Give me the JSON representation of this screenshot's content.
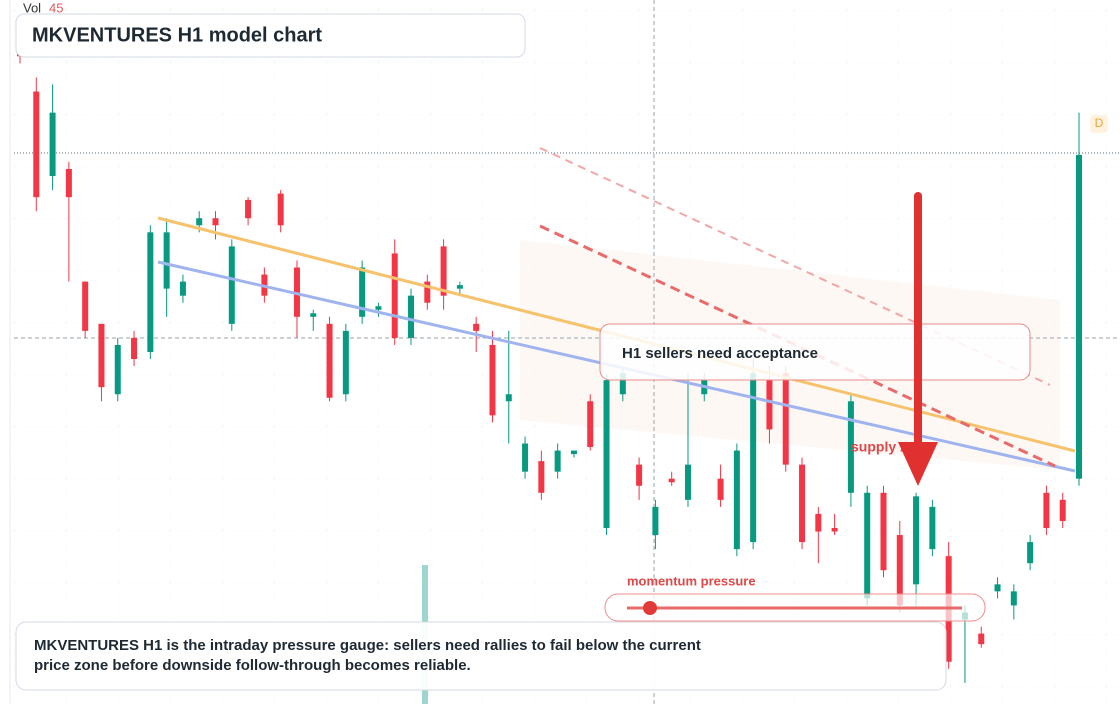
{
  "header": {
    "vol_label": "Vol",
    "vol_value": 45,
    "title": "MKVENTURES H1 model chart",
    "badge": "D"
  },
  "chart_data": {
    "type": "candlestick",
    "ylim": [
      0,
      100
    ],
    "up_color": "#089981",
    "down_color": "#f23645",
    "open": [
      93,
      87,
      75,
      76,
      60,
      54,
      44,
      52,
      50,
      59,
      58,
      68,
      69,
      54,
      71.6,
      61,
      72.5,
      62,
      55,
      54,
      44,
      55,
      56,
      64,
      52,
      60,
      65,
      59,
      54,
      51,
      43,
      33,
      34.5,
      33,
      35.5,
      43,
      25,
      44,
      34,
      24,
      32,
      29,
      44,
      32,
      22,
      23,
      46,
      47,
      34,
      27,
      25,
      30,
      15,
      30,
      24,
      17,
      22,
      21,
      12,
      10,
      16,
      14,
      20,
      30,
      29,
      32
    ],
    "high": [
      95,
      89,
      88,
      77,
      60,
      54,
      52,
      53,
      68,
      69,
      61,
      70,
      70,
      66,
      72,
      62,
      73,
      63,
      56,
      55,
      54,
      63,
      57,
      66,
      59,
      61,
      66,
      60,
      55,
      53,
      53,
      38,
      36,
      37,
      36,
      44,
      47,
      48,
      35,
      29,
      33,
      47,
      47,
      34,
      37,
      49,
      48,
      48,
      35,
      28,
      27,
      44,
      31,
      31,
      26,
      30,
      29,
      23,
      14,
      11,
      18,
      17,
      24,
      31,
      30,
      84
    ],
    "low": [
      91,
      70,
      73,
      60,
      52,
      43,
      43,
      48,
      49,
      55,
      57,
      67,
      66,
      53,
      68,
      57,
      67,
      52,
      53,
      43,
      43,
      54,
      55,
      51,
      51,
      56,
      56,
      58,
      50,
      40,
      37,
      32,
      29,
      32,
      35,
      36,
      24,
      43,
      29,
      22,
      31,
      28,
      43,
      28,
      21,
      22,
      37,
      33,
      22,
      20,
      24,
      28,
      14,
      18,
      13,
      14,
      21,
      5,
      3,
      8,
      15,
      12,
      19,
      24,
      25,
      31
    ],
    "close": [
      92,
      72,
      84,
      72,
      53,
      45,
      51,
      49,
      67,
      67,
      60,
      69,
      68,
      65,
      69,
      58,
      68,
      55,
      55.5,
      43.5,
      53,
      62,
      56.5,
      52,
      58,
      57,
      58,
      59.5,
      53,
      41,
      44,
      37,
      30,
      36,
      36,
      36.5,
      46,
      47,
      31,
      28,
      31.5,
      34,
      46,
      29,
      36,
      47,
      39,
      34,
      23,
      24.5,
      24.5,
      43,
      30,
      19,
      14,
      29.5,
      28,
      6,
      13,
      8.5,
      17,
      16,
      23,
      25,
      26,
      78
    ]
  },
  "annotations": {
    "callout": "H1 sellers need acceptance",
    "zone": "supply zone",
    "gauge": "momentum pressure",
    "note": "MKVENTURES H1 is the intraday pressure gauge: sellers need rallies to fail below the current price zone before downside follow-through becomes reliable."
  }
}
